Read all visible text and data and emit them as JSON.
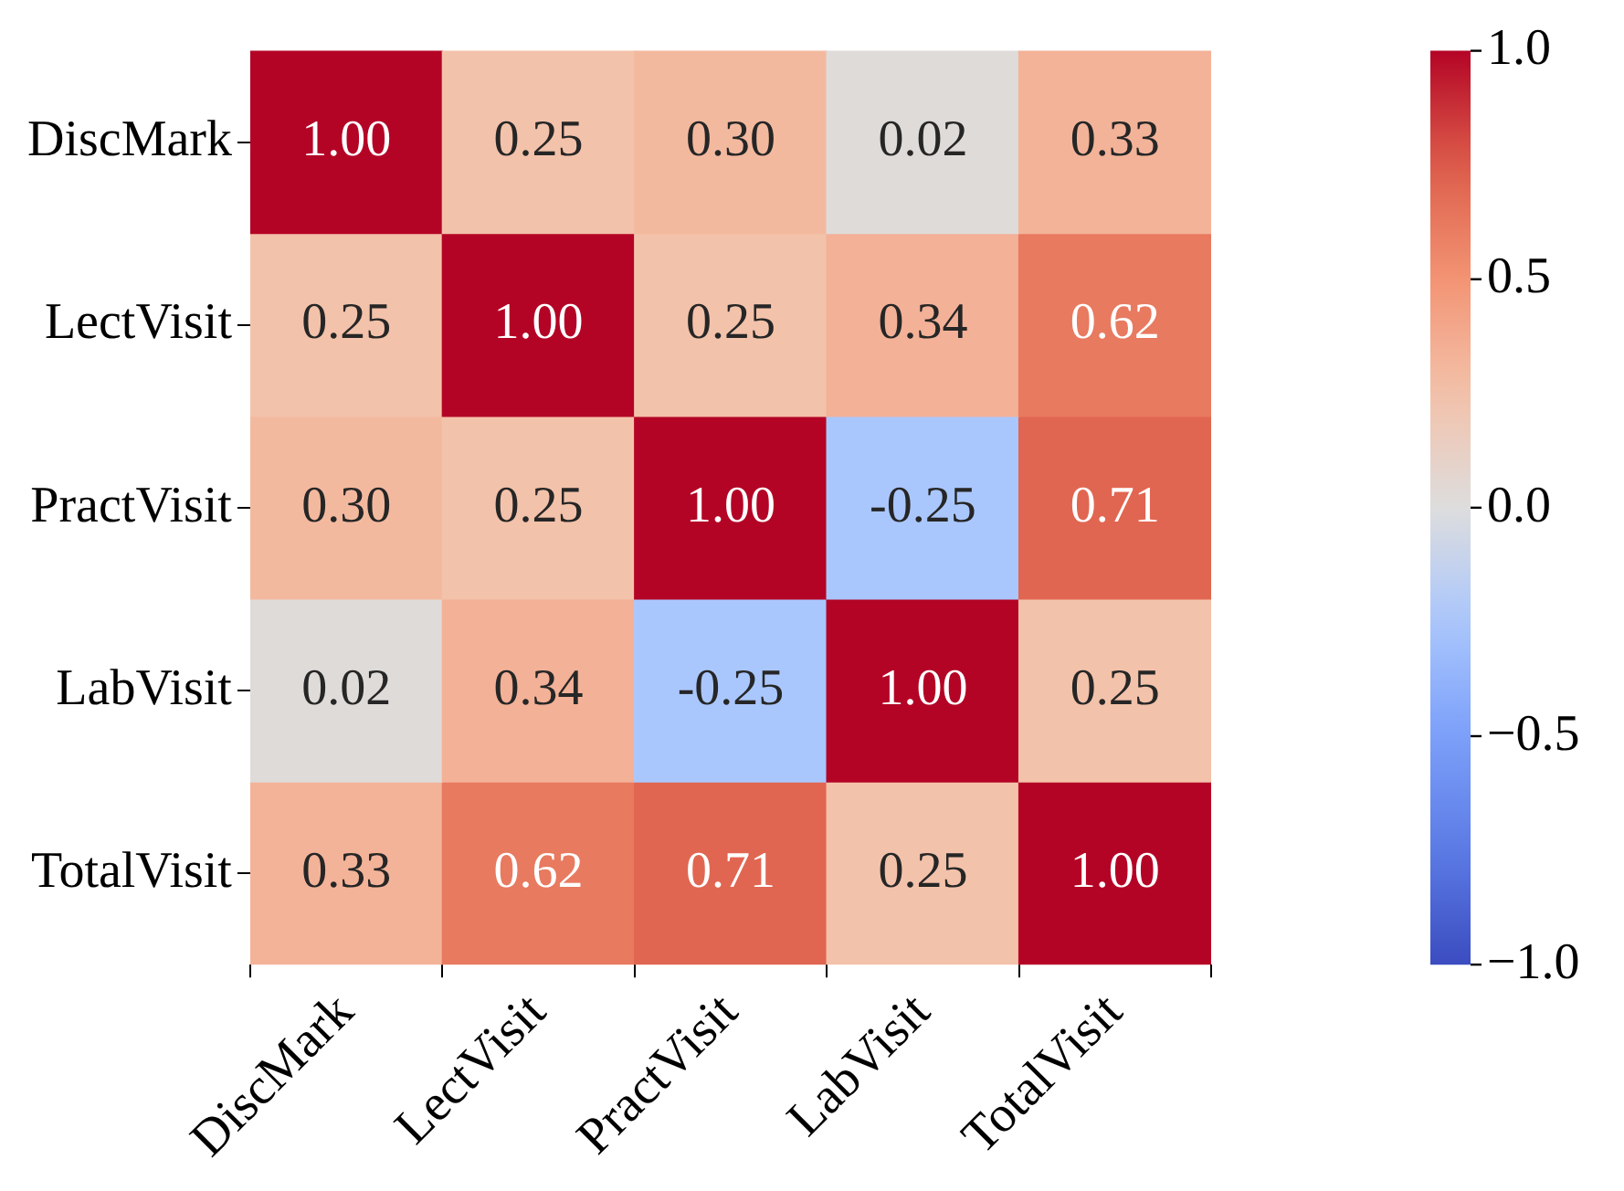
{
  "chart_data": {
    "type": "heatmap",
    "categories": [
      "DiscMark",
      "LectVisit",
      "PractVisit",
      "LabVisit",
      "TotalVisit"
    ],
    "y_categories": [
      "DiscMark",
      "LectVisit",
      "PractVisit",
      "LabVisit",
      "TotalVisit"
    ],
    "cells": [
      [
        1.0,
        0.25,
        0.3,
        0.02,
        0.33
      ],
      [
        0.25,
        1.0,
        0.25,
        0.34,
        0.62
      ],
      [
        0.3,
        0.25,
        1.0,
        -0.25,
        0.71
      ],
      [
        0.02,
        0.34,
        -0.25,
        1.0,
        0.25
      ],
      [
        0.33,
        0.62,
        0.71,
        0.25,
        1.0
      ]
    ],
    "cell_labels": [
      [
        "1.00",
        "0.25",
        "0.30",
        "0.02",
        "0.33"
      ],
      [
        "0.25",
        "1.00",
        "0.25",
        "0.34",
        "0.62"
      ],
      [
        "0.30",
        "0.25",
        "1.00",
        "-0.25",
        "0.71"
      ],
      [
        "0.02",
        "0.34",
        "-0.25",
        "1.00",
        "0.25"
      ],
      [
        "0.33",
        "0.62",
        "0.71",
        "0.25",
        "1.00"
      ]
    ],
    "clim": [
      -1,
      1
    ],
    "cticks": [
      {
        "value": 1,
        "label": "1.0"
      },
      {
        "value": 0.5,
        "label": "0.5"
      },
      {
        "value": 0,
        "label": "0.0"
      },
      {
        "value": -0.5,
        "label": "−0.5"
      },
      {
        "value": -1,
        "label": "−1.0"
      }
    ]
  }
}
